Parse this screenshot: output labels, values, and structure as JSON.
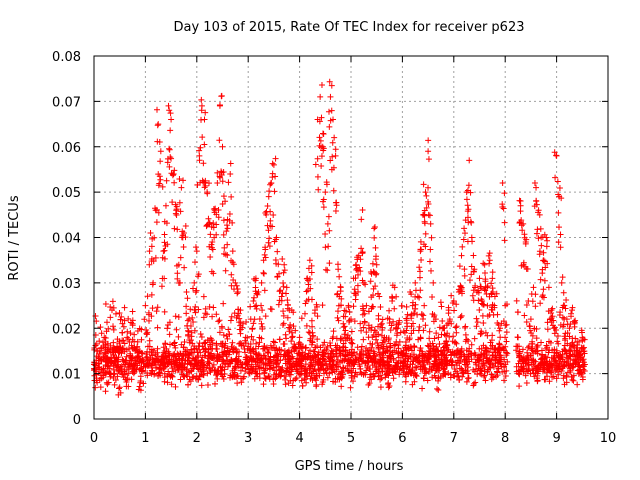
{
  "chart_data": {
    "type": "scatter",
    "title": "Day 103 of 2015, Rate Of TEC Index for receiver p623",
    "xlabel": "GPS time / hours",
    "ylabel": "ROTI / TECUs",
    "xlim": [
      0,
      10
    ],
    "ylim": [
      0,
      0.08
    ],
    "xticks": [
      0,
      1,
      2,
      3,
      4,
      5,
      6,
      7,
      8,
      9,
      10
    ],
    "yticks": [
      0,
      0.01,
      0.02,
      0.03,
      0.04,
      0.05,
      0.06,
      0.07,
      0.08
    ],
    "xtick_labels": [
      "0",
      "1",
      "2",
      "3",
      "4",
      "5",
      "6",
      "7",
      "8",
      "9",
      "10"
    ],
    "ytick_labels": [
      "0",
      "0.01",
      "0.02",
      "0.03",
      "0.04",
      "0.05",
      "0.06",
      "0.07",
      "0.08"
    ],
    "grid": true,
    "marker": "+",
    "color": "#ff0000",
    "data_gap": [
      8.05,
      8.2
    ],
    "series": [
      {
        "name": "ROTI",
        "points": [
          [
            0.0,
            0.012
          ],
          [
            0.05,
            0.009
          ],
          [
            0.1,
            0.015
          ],
          [
            0.15,
            0.011
          ],
          [
            0.2,
            0.018
          ],
          [
            0.25,
            0.008
          ],
          [
            0.3,
            0.013
          ],
          [
            0.35,
            0.024
          ],
          [
            0.4,
            0.01
          ],
          [
            0.45,
            0.016
          ],
          [
            0.5,
            0.007
          ],
          [
            0.55,
            0.019
          ],
          [
            0.6,
            0.012
          ],
          [
            0.65,
            0.009
          ],
          [
            0.7,
            0.014
          ],
          [
            0.75,
            0.021
          ],
          [
            0.8,
            0.011
          ],
          [
            0.85,
            0.017
          ],
          [
            0.9,
            0.008
          ],
          [
            0.95,
            0.013
          ],
          [
            1.0,
            0.025
          ],
          [
            1.05,
            0.016
          ],
          [
            1.1,
            0.041
          ],
          [
            1.15,
            0.03
          ],
          [
            1.2,
            0.046
          ],
          [
            1.25,
            0.065
          ],
          [
            1.3,
            0.059
          ],
          [
            1.35,
            0.037
          ],
          [
            1.4,
            0.047
          ],
          [
            1.45,
            0.069
          ],
          [
            1.5,
            0.066
          ],
          [
            1.55,
            0.054
          ],
          [
            1.6,
            0.046
          ],
          [
            1.65,
            0.034
          ],
          [
            1.7,
            0.051
          ],
          [
            1.75,
            0.041
          ],
          [
            1.8,
            0.028
          ],
          [
            1.85,
            0.022
          ],
          [
            1.9,
            0.019
          ],
          [
            1.95,
            0.03
          ],
          [
            2.0,
            0.037
          ],
          [
            2.05,
            0.058
          ],
          [
            2.1,
            0.069
          ],
          [
            2.15,
            0.066
          ],
          [
            2.2,
            0.05
          ],
          [
            2.25,
            0.043
          ],
          [
            2.3,
            0.039
          ],
          [
            2.35,
            0.046
          ],
          [
            2.4,
            0.052
          ],
          [
            2.45,
            0.069
          ],
          [
            2.5,
            0.06
          ],
          [
            2.55,
            0.048
          ],
          [
            2.6,
            0.042
          ],
          [
            2.65,
            0.054
          ],
          [
            2.7,
            0.037
          ],
          [
            2.75,
            0.03
          ],
          [
            2.8,
            0.028
          ],
          [
            2.85,
            0.024
          ],
          [
            2.9,
            0.021
          ],
          [
            2.95,
            0.018
          ],
          [
            3.0,
            0.016
          ],
          [
            3.05,
            0.022
          ],
          [
            3.1,
            0.026
          ],
          [
            3.15,
            0.031
          ],
          [
            3.2,
            0.028
          ],
          [
            3.25,
            0.025
          ],
          [
            3.3,
            0.035
          ],
          [
            3.35,
            0.045
          ],
          [
            3.4,
            0.049
          ],
          [
            3.45,
            0.052
          ],
          [
            3.5,
            0.056
          ],
          [
            3.55,
            0.04
          ],
          [
            3.6,
            0.032
          ],
          [
            3.65,
            0.027
          ],
          [
            3.7,
            0.034
          ],
          [
            3.75,
            0.029
          ],
          [
            3.8,
            0.024
          ],
          [
            3.85,
            0.019
          ],
          [
            3.9,
            0.016
          ],
          [
            3.95,
            0.012
          ],
          [
            4.0,
            0.018
          ],
          [
            4.05,
            0.014
          ],
          [
            4.1,
            0.011
          ],
          [
            4.15,
            0.031
          ],
          [
            4.2,
            0.035
          ],
          [
            4.25,
            0.019
          ],
          [
            4.3,
            0.024
          ],
          [
            4.35,
            0.066
          ],
          [
            4.4,
            0.071
          ],
          [
            4.45,
            0.06
          ],
          [
            4.5,
            0.05
          ],
          [
            4.55,
            0.043
          ],
          [
            4.6,
            0.071
          ],
          [
            4.65,
            0.066
          ],
          [
            4.7,
            0.058
          ],
          [
            4.75,
            0.033
          ],
          [
            4.8,
            0.029
          ],
          [
            4.85,
            0.021
          ],
          [
            4.9,
            0.018
          ],
          [
            4.95,
            0.025
          ],
          [
            5.0,
            0.022
          ],
          [
            5.05,
            0.031
          ],
          [
            5.1,
            0.034
          ],
          [
            5.15,
            0.036
          ],
          [
            5.2,
            0.044
          ],
          [
            5.25,
            0.03
          ],
          [
            5.3,
            0.025
          ],
          [
            5.35,
            0.02
          ],
          [
            5.4,
            0.032
          ],
          [
            5.45,
            0.042
          ],
          [
            5.5,
            0.034
          ],
          [
            5.55,
            0.027
          ],
          [
            5.6,
            0.021
          ],
          [
            5.65,
            0.018
          ],
          [
            5.7,
            0.015
          ],
          [
            5.75,
            0.022
          ],
          [
            5.8,
            0.026
          ],
          [
            5.85,
            0.029
          ],
          [
            5.9,
            0.02
          ],
          [
            5.95,
            0.017
          ],
          [
            6.0,
            0.014
          ],
          [
            6.05,
            0.019
          ],
          [
            6.1,
            0.023
          ],
          [
            6.15,
            0.028
          ],
          [
            6.2,
            0.025
          ],
          [
            6.25,
            0.03
          ],
          [
            6.3,
            0.027
          ],
          [
            6.35,
            0.037
          ],
          [
            6.4,
            0.045
          ],
          [
            6.45,
            0.05
          ],
          [
            6.5,
            0.059
          ],
          [
            6.55,
            0.043
          ],
          [
            6.6,
            0.03
          ],
          [
            6.65,
            0.022
          ],
          [
            6.7,
            0.018
          ],
          [
            6.75,
            0.015
          ],
          [
            6.8,
            0.02
          ],
          [
            6.85,
            0.017
          ],
          [
            6.9,
            0.024
          ],
          [
            6.95,
            0.021
          ],
          [
            7.0,
            0.026
          ],
          [
            7.05,
            0.019
          ],
          [
            7.1,
            0.028
          ],
          [
            7.15,
            0.036
          ],
          [
            7.2,
            0.042
          ],
          [
            7.25,
            0.05
          ],
          [
            7.3,
            0.057
          ],
          [
            7.35,
            0.04
          ],
          [
            7.4,
            0.033
          ],
          [
            7.45,
            0.028
          ],
          [
            7.5,
            0.031
          ],
          [
            7.55,
            0.026
          ],
          [
            7.6,
            0.034
          ],
          [
            7.65,
            0.029
          ],
          [
            7.7,
            0.035
          ],
          [
            7.75,
            0.031
          ],
          [
            7.8,
            0.027
          ],
          [
            7.85,
            0.023
          ],
          [
            7.9,
            0.02
          ],
          [
            7.95,
            0.052
          ],
          [
            8.0,
            0.025
          ],
          [
            8.25,
            0.018
          ],
          [
            8.3,
            0.047
          ],
          [
            8.35,
            0.043
          ],
          [
            8.4,
            0.039
          ],
          [
            8.45,
            0.026
          ],
          [
            8.5,
            0.022
          ],
          [
            8.55,
            0.029
          ],
          [
            8.6,
            0.051
          ],
          [
            8.65,
            0.046
          ],
          [
            8.7,
            0.04
          ],
          [
            8.75,
            0.035
          ],
          [
            8.8,
            0.04
          ],
          [
            8.85,
            0.029
          ],
          [
            8.9,
            0.024
          ],
          [
            8.95,
            0.02
          ],
          [
            9.0,
            0.058
          ],
          [
            9.05,
            0.049
          ],
          [
            9.1,
            0.03
          ],
          [
            9.15,
            0.025
          ],
          [
            9.2,
            0.022
          ],
          [
            9.25,
            0.02
          ],
          [
            9.3,
            0.024
          ],
          [
            9.35,
            0.021
          ],
          [
            9.4,
            0.017
          ],
          [
            9.45,
            0.015
          ],
          [
            9.5,
            0.018
          ],
          [
            9.55,
            0.012
          ]
        ]
      }
    ]
  }
}
